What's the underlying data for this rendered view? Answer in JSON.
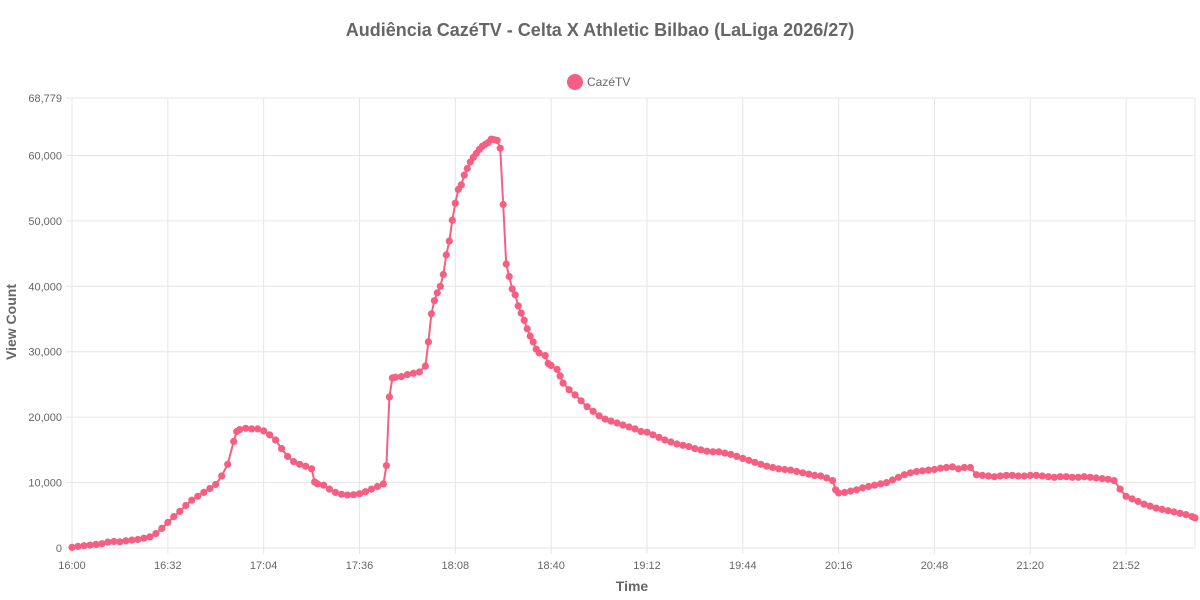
{
  "chart_data": {
    "type": "line",
    "title": "Audiência CazéTV - Celta X Athletic Bilbao (LaLiga 2026/27)",
    "xlabel": "Time",
    "ylabel": "View Count",
    "x_ticks": [
      "16:00",
      "16:32",
      "17:04",
      "17:36",
      "18:08",
      "18:40",
      "19:12",
      "19:44",
      "20:16",
      "20:48",
      "21:20",
      "21:52"
    ],
    "y_ticks": [
      "0",
      "10,000",
      "20,000",
      "30,000",
      "40,000",
      "50,000",
      "60,000",
      "68,779"
    ],
    "xlim": [
      "16:00",
      "22:15"
    ],
    "ylim": [
      0,
      68779
    ],
    "grid": true,
    "legend_position": "top",
    "series": [
      {
        "name": "CazéTV",
        "color": "#f55f82",
        "points": [
          [
            "16:00",
            100
          ],
          [
            "16:02",
            250
          ],
          [
            "16:04",
            350
          ],
          [
            "16:06",
            450
          ],
          [
            "16:08",
            550
          ],
          [
            "16:10",
            650
          ],
          [
            "16:12",
            900
          ],
          [
            "16:14",
            1000
          ],
          [
            "16:16",
            950
          ],
          [
            "16:18",
            1100
          ],
          [
            "16:20",
            1200
          ],
          [
            "16:22",
            1300
          ],
          [
            "16:24",
            1500
          ],
          [
            "16:26",
            1700
          ],
          [
            "16:28",
            2200
          ],
          [
            "16:30",
            3000
          ],
          [
            "16:32",
            3900
          ],
          [
            "16:34",
            4800
          ],
          [
            "16:36",
            5600
          ],
          [
            "16:38",
            6500
          ],
          [
            "16:40",
            7300
          ],
          [
            "16:42",
            7900
          ],
          [
            "16:44",
            8500
          ],
          [
            "16:46",
            9100
          ],
          [
            "16:48",
            9700
          ],
          [
            "16:50",
            11000
          ],
          [
            "16:52",
            12800
          ],
          [
            "16:54",
            16300
          ],
          [
            "16:55",
            17800
          ],
          [
            "16:56",
            18100
          ],
          [
            "16:58",
            18300
          ],
          [
            "17:00",
            18200
          ],
          [
            "17:02",
            18200
          ],
          [
            "17:04",
            17900
          ],
          [
            "17:06",
            17300
          ],
          [
            "17:08",
            16500
          ],
          [
            "17:10",
            15200
          ],
          [
            "17:12",
            14000
          ],
          [
            "17:14",
            13200
          ],
          [
            "17:16",
            12800
          ],
          [
            "17:18",
            12500
          ],
          [
            "17:20",
            12100
          ],
          [
            "17:21",
            10100
          ],
          [
            "17:22",
            9800
          ],
          [
            "17:24",
            9600
          ],
          [
            "17:26",
            9000
          ],
          [
            "17:28",
            8500
          ],
          [
            "17:30",
            8200
          ],
          [
            "17:32",
            8100
          ],
          [
            "17:34",
            8150
          ],
          [
            "17:36",
            8300
          ],
          [
            "17:38",
            8600
          ],
          [
            "17:40",
            9000
          ],
          [
            "17:42",
            9400
          ],
          [
            "17:44",
            9800
          ],
          [
            "17:45",
            12600
          ],
          [
            "17:46",
            23100
          ],
          [
            "17:47",
            26000
          ],
          [
            "17:48",
            26100
          ],
          [
            "17:50",
            26200
          ],
          [
            "17:52",
            26500
          ],
          [
            "17:54",
            26700
          ],
          [
            "17:56",
            26900
          ],
          [
            "17:58",
            27800
          ],
          [
            "17:59",
            31500
          ],
          [
            "18:00",
            35800
          ],
          [
            "18:01",
            37800
          ],
          [
            "18:02",
            39000
          ],
          [
            "18:03",
            40000
          ],
          [
            "18:04",
            41800
          ],
          [
            "18:05",
            44800
          ],
          [
            "18:06",
            46900
          ],
          [
            "18:07",
            50100
          ],
          [
            "18:08",
            52700
          ],
          [
            "18:09",
            54800
          ],
          [
            "18:10",
            55500
          ],
          [
            "18:11",
            57000
          ],
          [
            "18:12",
            58000
          ],
          [
            "18:13",
            59000
          ],
          [
            "18:14",
            59700
          ],
          [
            "18:15",
            60300
          ],
          [
            "18:16",
            60900
          ],
          [
            "18:17",
            61400
          ],
          [
            "18:18",
            61700
          ],
          [
            "18:19",
            62000
          ],
          [
            "18:20",
            62500
          ],
          [
            "18:21",
            62400
          ],
          [
            "18:22",
            62300
          ],
          [
            "18:23",
            61100
          ],
          [
            "18:24",
            52500
          ],
          [
            "18:25",
            43400
          ],
          [
            "18:26",
            41500
          ],
          [
            "18:27",
            39600
          ],
          [
            "18:28",
            38700
          ],
          [
            "18:29",
            37000
          ],
          [
            "18:30",
            35900
          ],
          [
            "18:31",
            34800
          ],
          [
            "18:32",
            33500
          ],
          [
            "18:33",
            32400
          ],
          [
            "18:34",
            31500
          ],
          [
            "18:35",
            30400
          ],
          [
            "18:36",
            29800
          ],
          [
            "18:38",
            29400
          ],
          [
            "18:39",
            28200
          ],
          [
            "18:40",
            27900
          ],
          [
            "18:42",
            27300
          ],
          [
            "18:43",
            26300
          ],
          [
            "18:44",
            25200
          ],
          [
            "18:46",
            24200
          ],
          [
            "18:48",
            23400
          ],
          [
            "18:50",
            22500
          ],
          [
            "18:52",
            21600
          ],
          [
            "18:54",
            20900
          ],
          [
            "18:56",
            20200
          ],
          [
            "18:58",
            19700
          ],
          [
            "19:00",
            19400
          ],
          [
            "19:02",
            19100
          ],
          [
            "19:04",
            18800
          ],
          [
            "19:06",
            18500
          ],
          [
            "19:08",
            18200
          ],
          [
            "19:10",
            17800
          ],
          [
            "19:12",
            17700
          ],
          [
            "19:14",
            17300
          ],
          [
            "19:16",
            16900
          ],
          [
            "19:18",
            16500
          ],
          [
            "19:20",
            16200
          ],
          [
            "19:22",
            15900
          ],
          [
            "19:24",
            15700
          ],
          [
            "19:26",
            15500
          ],
          [
            "19:28",
            15200
          ],
          [
            "19:30",
            15000
          ],
          [
            "19:32",
            14800
          ],
          [
            "19:34",
            14700
          ],
          [
            "19:36",
            14700
          ],
          [
            "19:38",
            14500
          ],
          [
            "19:40",
            14300
          ],
          [
            "19:42",
            14000
          ],
          [
            "19:44",
            13700
          ],
          [
            "19:46",
            13400
          ],
          [
            "19:48",
            13100
          ],
          [
            "19:50",
            12800
          ],
          [
            "19:52",
            12500
          ],
          [
            "19:54",
            12300
          ],
          [
            "19:56",
            12100
          ],
          [
            "19:58",
            12000
          ],
          [
            "20:00",
            11900
          ],
          [
            "20:02",
            11700
          ],
          [
            "20:04",
            11500
          ],
          [
            "20:06",
            11300
          ],
          [
            "20:08",
            11100
          ],
          [
            "20:10",
            11000
          ],
          [
            "20:12",
            10700
          ],
          [
            "20:14",
            10300
          ],
          [
            "20:15",
            8900
          ],
          [
            "20:16",
            8400
          ],
          [
            "20:18",
            8500
          ],
          [
            "20:20",
            8700
          ],
          [
            "20:22",
            8900
          ],
          [
            "20:24",
            9200
          ],
          [
            "20:26",
            9400
          ],
          [
            "20:28",
            9600
          ],
          [
            "20:30",
            9800
          ],
          [
            "20:32",
            10000
          ],
          [
            "20:34",
            10400
          ],
          [
            "20:36",
            10800
          ],
          [
            "20:38",
            11200
          ],
          [
            "20:40",
            11500
          ],
          [
            "20:42",
            11700
          ],
          [
            "20:44",
            11800
          ],
          [
            "20:46",
            11900
          ],
          [
            "20:48",
            12000
          ],
          [
            "20:50",
            12200
          ],
          [
            "20:52",
            12300
          ],
          [
            "20:54",
            12400
          ],
          [
            "20:56",
            12100
          ],
          [
            "20:58",
            12300
          ],
          [
            "21:00",
            12300
          ],
          [
            "21:02",
            11200
          ],
          [
            "21:04",
            11100
          ],
          [
            "21:06",
            11000
          ],
          [
            "21:08",
            10900
          ],
          [
            "21:10",
            11000
          ],
          [
            "21:12",
            11100
          ],
          [
            "21:14",
            11100
          ],
          [
            "21:16",
            11000
          ],
          [
            "21:18",
            11000
          ],
          [
            "21:20",
            11100
          ],
          [
            "21:22",
            11100
          ],
          [
            "21:24",
            11000
          ],
          [
            "21:26",
            10900
          ],
          [
            "21:28",
            10800
          ],
          [
            "21:30",
            10900
          ],
          [
            "21:32",
            10900
          ],
          [
            "21:34",
            10800
          ],
          [
            "21:36",
            10800
          ],
          [
            "21:38",
            10900
          ],
          [
            "21:40",
            10800
          ],
          [
            "21:42",
            10700
          ],
          [
            "21:44",
            10600
          ],
          [
            "21:46",
            10500
          ],
          [
            "21:48",
            10300
          ],
          [
            "21:50",
            9000
          ],
          [
            "21:52",
            7900
          ],
          [
            "21:54",
            7500
          ],
          [
            "21:56",
            7100
          ],
          [
            "21:58",
            6700
          ],
          [
            "22:00",
            6400
          ],
          [
            "22:02",
            6100
          ],
          [
            "22:04",
            5900
          ],
          [
            "22:06",
            5700
          ],
          [
            "22:08",
            5500
          ],
          [
            "22:10",
            5300
          ],
          [
            "22:12",
            5100
          ],
          [
            "22:14",
            4800
          ],
          [
            "22:15",
            4600
          ]
        ]
      }
    ]
  }
}
